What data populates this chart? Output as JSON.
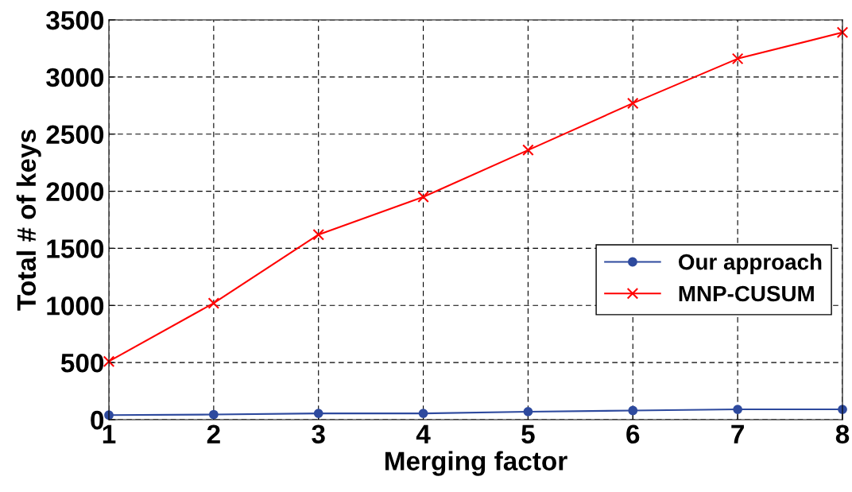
{
  "chart_data": {
    "type": "line",
    "xlabel": "Merging factor",
    "ylabel": "Total # of keys",
    "x": [
      1,
      2,
      3,
      4,
      5,
      6,
      7,
      8
    ],
    "series": [
      {
        "name": "Our approach",
        "color": "#2e4a9e",
        "marker": "circle",
        "values": [
          40,
          45,
          55,
          55,
          70,
          80,
          90,
          90
        ]
      },
      {
        "name": "MNP-CUSUM",
        "color": "#ff0000",
        "marker": "cross",
        "values": [
          510,
          1020,
          1620,
          1950,
          2360,
          2770,
          3160,
          3390
        ]
      }
    ],
    "xlim": [
      1,
      8
    ],
    "xticks": [
      1,
      2,
      3,
      4,
      5,
      6,
      7,
      8
    ],
    "ylim": [
      0,
      3500
    ],
    "yticks": [
      0,
      500,
      1000,
      1500,
      2000,
      2500,
      3000,
      3500
    ],
    "grid": true,
    "legend": "right",
    "line_style": "solid"
  }
}
